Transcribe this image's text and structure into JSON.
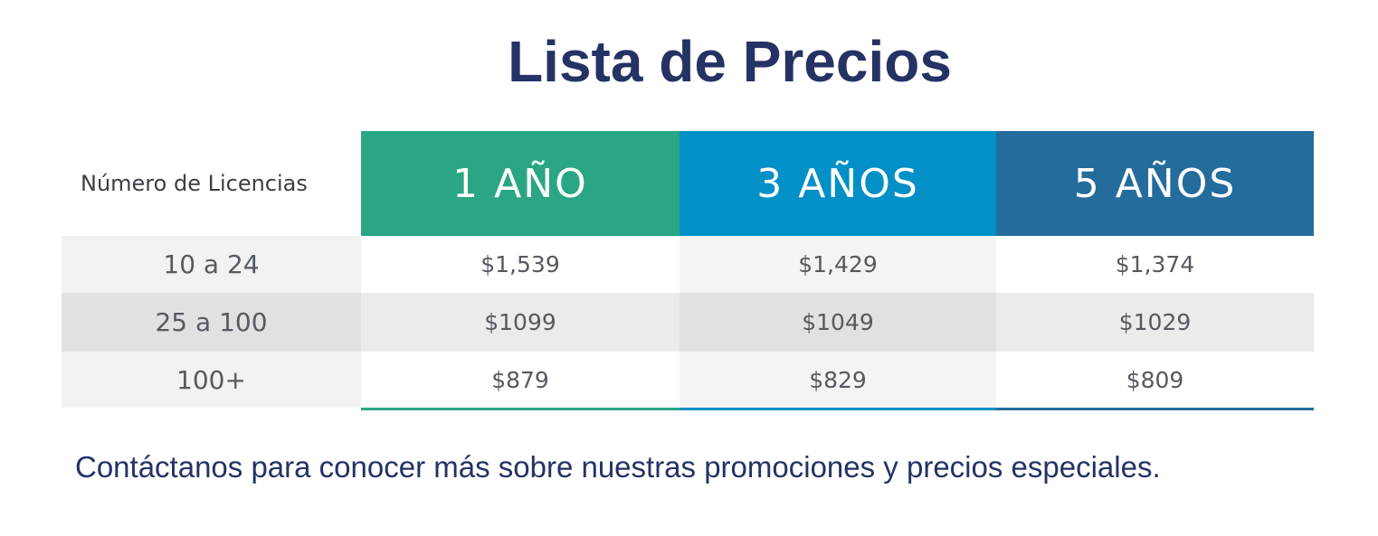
{
  "title": "Lista de Precios",
  "colors": {
    "title": "#253264",
    "col_1_year": "#2aa685",
    "col_3_years": "#0290c7",
    "col_5_years": "#246c9c",
    "row_light": "#f4f4f4",
    "row_dark": "#e4e4e4"
  },
  "table": {
    "headers": [
      "Número de Licencias",
      "1 AÑO",
      "3 AÑOS",
      "5 AÑOS"
    ],
    "rows": [
      {
        "label": "10 a 24",
        "prices": [
          "$1,539",
          "$1,429",
          "$1,374"
        ]
      },
      {
        "label": "25 a 100",
        "prices": [
          "$1099",
          "$1049",
          "$1029"
        ]
      },
      {
        "label": "100+",
        "prices": [
          "$879",
          "$829",
          "$809"
        ]
      }
    ]
  },
  "note": "Contáctanos para conocer más sobre nuestras promociones y precios especiales."
}
